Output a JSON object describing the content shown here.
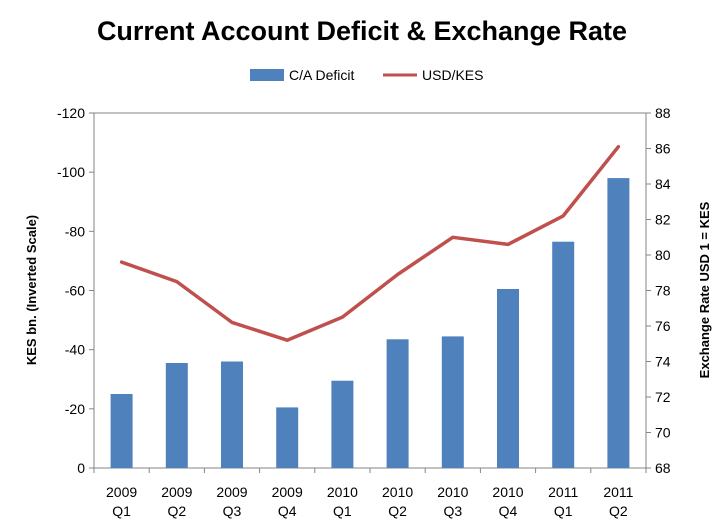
{
  "chart_data": {
    "type": "bar",
    "title": "Current Account Deficit & Exchange Rate",
    "categories": [
      [
        "2009",
        "Q1"
      ],
      [
        "2009",
        "Q2"
      ],
      [
        "2009",
        "Q3"
      ],
      [
        "2009",
        "Q4"
      ],
      [
        "2010",
        "Q1"
      ],
      [
        "2010",
        "Q2"
      ],
      [
        "2010",
        "Q3"
      ],
      [
        "2010",
        "Q4"
      ],
      [
        "2011",
        "Q1"
      ],
      [
        "2011",
        "Q2"
      ]
    ],
    "series": [
      {
        "name": "C/A Deficit",
        "type": "bar",
        "axis": "left",
        "color": "#4F81BD",
        "values": [
          -25,
          -35.5,
          -36,
          -20.5,
          -29.5,
          -43.5,
          -44.5,
          -60.5,
          -76.5,
          -98
        ]
      },
      {
        "name": "USD/KES",
        "type": "line",
        "axis": "right",
        "color": "#C0504D",
        "values": [
          79.6,
          78.5,
          76.2,
          75.2,
          76.5,
          78.9,
          81.0,
          80.6,
          82.2,
          86.1
        ]
      }
    ],
    "ylabel_left": "KES bn. (Inverted Scale)",
    "ylabel_right": "Exchange Rate USD 1 = KES",
    "ylim_left": [
      0,
      -120
    ],
    "yticks_left": [
      "-120",
      "-100",
      "-80",
      "-60",
      "-40",
      "-20",
      "0"
    ],
    "left_axis_inverted": true,
    "ylim_right": [
      68,
      88
    ],
    "yticks_right": [
      "88",
      "86",
      "84",
      "82",
      "80",
      "78",
      "76",
      "74",
      "72",
      "70",
      "68"
    ],
    "legend": "top-center",
    "grid": false
  }
}
